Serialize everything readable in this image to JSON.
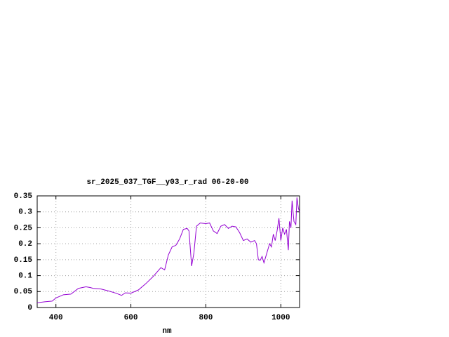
{
  "chart_data": {
    "type": "line",
    "title": "sr_2025_037_TGF__y03_r_rad 06-20-00",
    "x_label": "nm",
    "color": "#9400d3",
    "grid": true,
    "xlim": [
      350,
      1050
    ],
    "ylim": [
      0,
      0.35
    ],
    "xticks": [
      400,
      600,
      800,
      1000
    ],
    "yticks": [
      0,
      0.05,
      0.1,
      0.15,
      0.2,
      0.25,
      0.3,
      0.35
    ],
    "x": [
      350,
      370,
      390,
      400,
      420,
      440,
      460,
      480,
      490,
      500,
      520,
      540,
      560,
      575,
      585,
      600,
      620,
      640,
      660,
      680,
      690,
      700,
      710,
      720,
      730,
      740,
      750,
      755,
      762,
      768,
      775,
      785,
      800,
      810,
      820,
      830,
      840,
      850,
      860,
      870,
      880,
      890,
      900,
      910,
      920,
      930,
      935,
      940,
      945,
      950,
      955,
      960,
      970,
      975,
      980,
      985,
      990,
      995,
      1000,
      1005,
      1010,
      1015,
      1020,
      1023,
      1027,
      1030,
      1035,
      1040,
      1043,
      1047,
      1050
    ],
    "values": [
      0.015,
      0.018,
      0.02,
      0.03,
      0.04,
      0.042,
      0.06,
      0.065,
      0.063,
      0.06,
      0.058,
      0.052,
      0.045,
      0.038,
      0.046,
      0.045,
      0.055,
      0.075,
      0.098,
      0.125,
      0.118,
      0.165,
      0.19,
      0.195,
      0.215,
      0.245,
      0.248,
      0.24,
      0.13,
      0.17,
      0.255,
      0.265,
      0.263,
      0.265,
      0.24,
      0.232,
      0.255,
      0.26,
      0.248,
      0.255,
      0.253,
      0.235,
      0.21,
      0.215,
      0.205,
      0.21,
      0.2,
      0.15,
      0.148,
      0.16,
      0.14,
      0.16,
      0.2,
      0.19,
      0.23,
      0.21,
      0.24,
      0.28,
      0.21,
      0.25,
      0.23,
      0.245,
      0.18,
      0.27,
      0.25,
      0.335,
      0.27,
      0.26,
      0.345,
      0.31,
      0.3
    ]
  }
}
